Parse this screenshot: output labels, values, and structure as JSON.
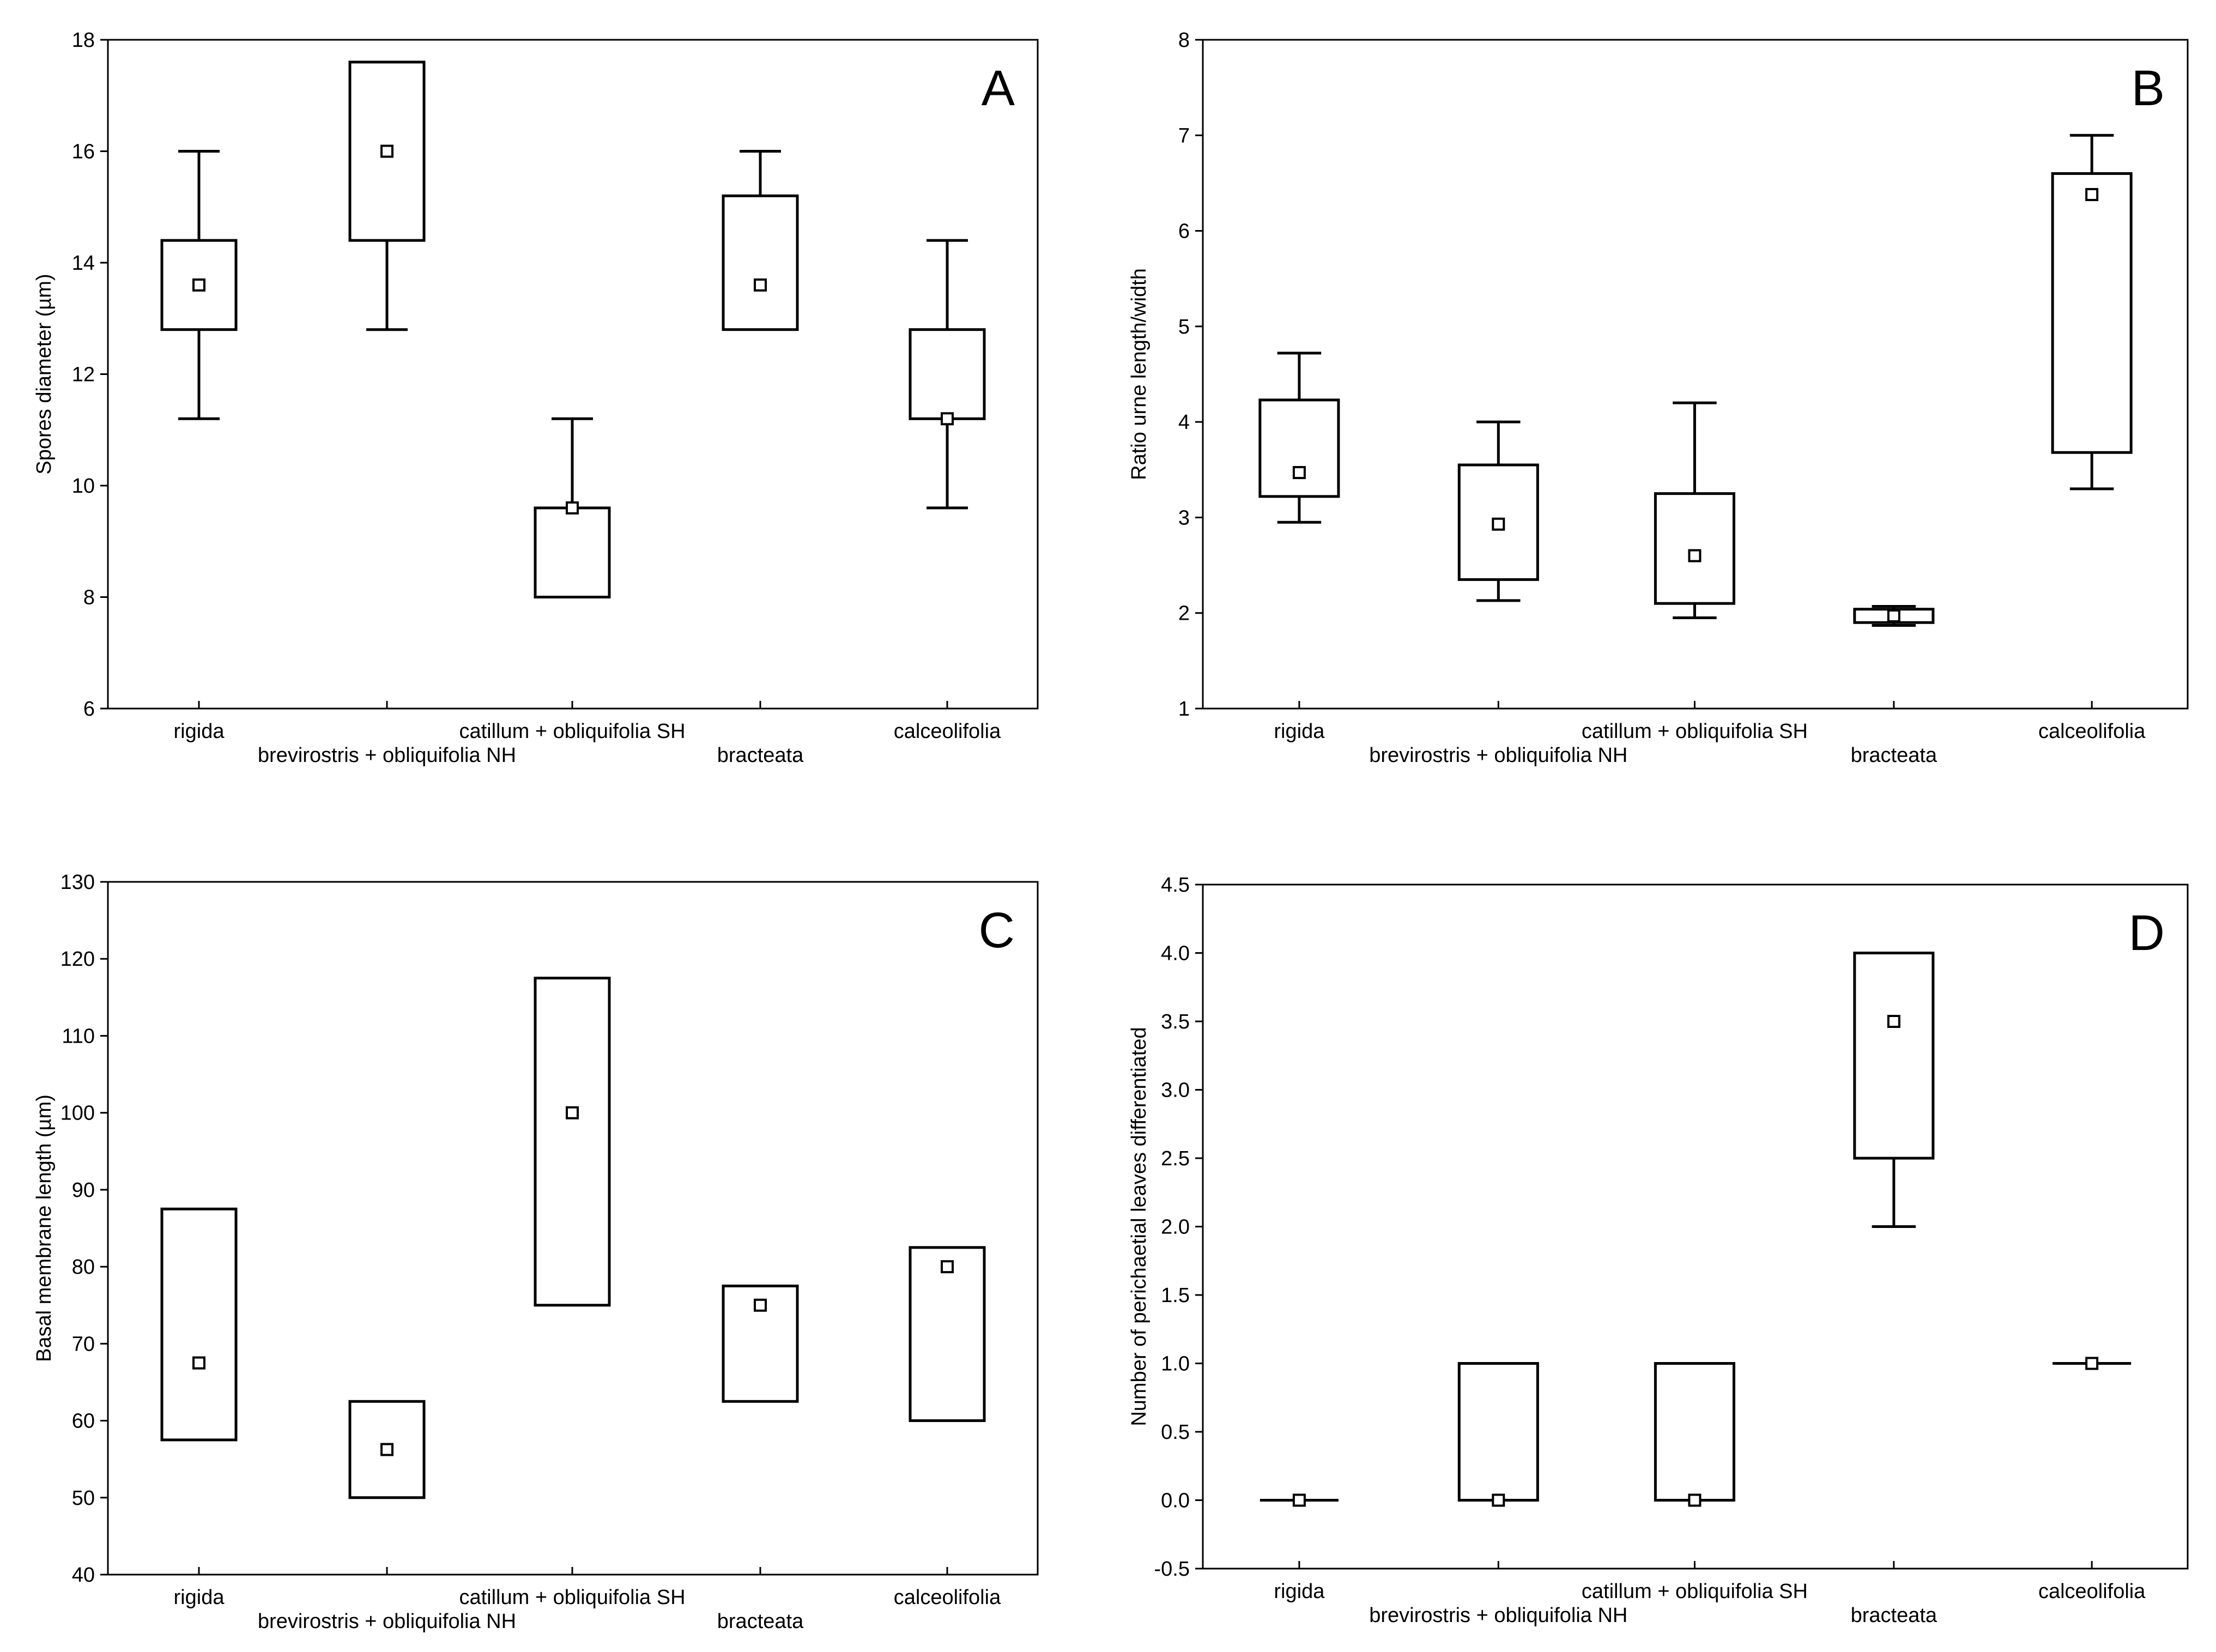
{
  "chart_data": [
    {
      "type": "boxplot",
      "panel": "A",
      "ylabel": "Spores diameter (µm)",
      "ylim": [
        6,
        18
      ],
      "yticks": [
        "6",
        "8",
        "10",
        "12",
        "14",
        "16",
        "18"
      ],
      "categories": [
        "rigida",
        "brevirostris + obliquifolia NH",
        "catillum + obliquifolia SH",
        "bracteata",
        "calceolifolia"
      ],
      "series": [
        {
          "name": "rigida",
          "median": 13.6,
          "q1": 12.8,
          "q3": 14.4,
          "min": 11.2,
          "max": 16.0
        },
        {
          "name": "brevirostris + obliquifolia NH",
          "median": 16.0,
          "q1": 14.4,
          "q3": 17.6,
          "min": 12.8,
          "max": 17.6
        },
        {
          "name": "catillum + obliquifolia SH",
          "median": 9.6,
          "q1": 8.0,
          "q3": 9.6,
          "min": 8.0,
          "max": 11.2
        },
        {
          "name": "bracteata",
          "median": 13.6,
          "q1": 12.8,
          "q3": 15.2,
          "min": 12.8,
          "max": 16.0
        },
        {
          "name": "calceolifolia",
          "median": 11.2,
          "q1": 11.2,
          "q3": 12.8,
          "min": 9.6,
          "max": 14.4
        }
      ]
    },
    {
      "type": "boxplot",
      "panel": "B",
      "ylabel": "Ratio urne length/width",
      "ylim": [
        1,
        8
      ],
      "yticks": [
        "1",
        "2",
        "3",
        "4",
        "5",
        "6",
        "7",
        "8"
      ],
      "categories": [
        "rigida",
        "brevirostris + obliquifolia NH",
        "catillum + obliquifolia SH",
        "bracteata",
        "calceolifolia"
      ],
      "series": [
        {
          "name": "rigida",
          "median": 3.47,
          "q1": 3.22,
          "q3": 4.23,
          "min": 2.95,
          "max": 4.72
        },
        {
          "name": "brevirostris + obliquifolia NH",
          "median": 2.93,
          "q1": 2.35,
          "q3": 3.55,
          "min": 2.13,
          "max": 4.0
        },
        {
          "name": "catillum + obliquifolia SH",
          "median": 2.6,
          "q1": 2.1,
          "q3": 3.25,
          "min": 1.95,
          "max": 4.2
        },
        {
          "name": "bracteata",
          "median": 1.97,
          "q1": 1.9,
          "q3": 2.04,
          "min": 1.87,
          "max": 2.07
        },
        {
          "name": "calceolifolia",
          "median": 6.38,
          "q1": 3.68,
          "q3": 6.6,
          "min": 3.3,
          "max": 7.0
        }
      ]
    },
    {
      "type": "boxplot",
      "panel": "C",
      "ylabel": "Basal membrane length (µm)",
      "ylim": [
        40,
        130
      ],
      "yticks": [
        "40",
        "50",
        "60",
        "70",
        "80",
        "90",
        "100",
        "110",
        "120",
        "130"
      ],
      "categories": [
        "rigida",
        "brevirostris + obliquifolia NH",
        "catillum + obliquifolia SH",
        "bracteata",
        "calceolifolia"
      ],
      "series": [
        {
          "name": "rigida",
          "median": 67.5,
          "q1": 57.5,
          "q3": 87.5,
          "min": 57.5,
          "max": 87.5
        },
        {
          "name": "brevirostris + obliquifolia NH",
          "median": 56.25,
          "q1": 50.0,
          "q3": 62.5,
          "min": 50.0,
          "max": 62.5
        },
        {
          "name": "catillum + obliquifolia SH",
          "median": 100.0,
          "q1": 75.0,
          "q3": 117.5,
          "min": 75.0,
          "max": 117.5
        },
        {
          "name": "bracteata",
          "median": 75.0,
          "q1": 62.5,
          "q3": 77.5,
          "min": 62.5,
          "max": 77.5
        },
        {
          "name": "calceolifolia",
          "median": 80.0,
          "q1": 60.0,
          "q3": 82.5,
          "min": 60.0,
          "max": 82.5
        }
      ]
    },
    {
      "type": "boxplot",
      "panel": "D",
      "ylabel": "Number of perichaetial leaves differentiated",
      "ylim": [
        -0.5,
        4.5
      ],
      "yticks": [
        "-0.5",
        "0.0",
        "0.5",
        "1.0",
        "1.5",
        "2.0",
        "2.5",
        "3.0",
        "3.5",
        "4.0",
        "4.5"
      ],
      "categories": [
        "rigida",
        "brevirostris + obliquifolia NH",
        "catillum + obliquifolia SH",
        "bracteata",
        "calceolifolia"
      ],
      "series": [
        {
          "name": "rigida",
          "median": 0.0,
          "q1": 0.0,
          "q3": 0.0,
          "min": 0.0,
          "max": 0.0
        },
        {
          "name": "brevirostris + obliquifolia NH",
          "median": 0.0,
          "q1": 0.0,
          "q3": 1.0,
          "min": 0.0,
          "max": 1.0
        },
        {
          "name": "catillum + obliquifolia SH",
          "median": 0.0,
          "q1": 0.0,
          "q3": 1.0,
          "min": 0.0,
          "max": 1.0
        },
        {
          "name": "bracteata",
          "median": 3.5,
          "q1": 2.5,
          "q3": 4.0,
          "min": 2.0,
          "max": 4.0
        },
        {
          "name": "calceolifolia",
          "median": 1.0,
          "q1": 1.0,
          "q3": 1.0,
          "min": 1.0,
          "max": 1.0
        }
      ]
    }
  ]
}
